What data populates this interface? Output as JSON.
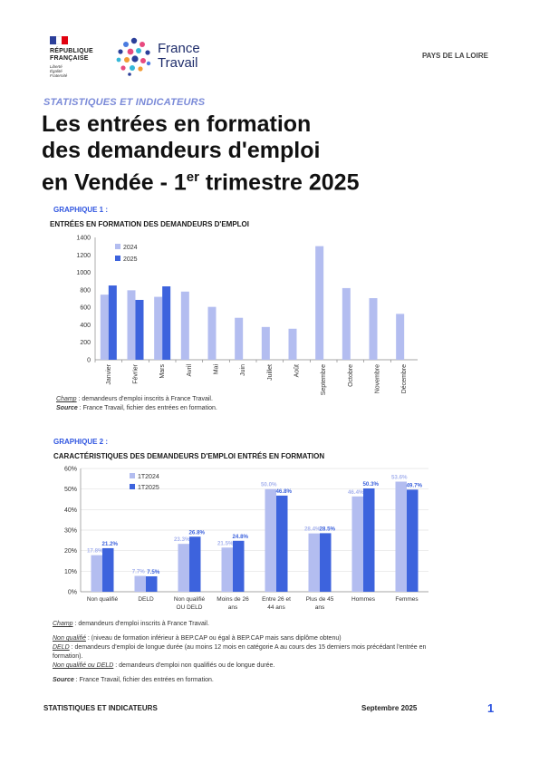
{
  "header": {
    "republic_lines": [
      "RÉPUBLIQUE",
      "FRANÇAISE"
    ],
    "republic_motto": [
      "Liberté",
      "Égalité",
      "Fraternité"
    ],
    "brand_lines": [
      "France",
      "Travail"
    ],
    "region": "PAYS DE LA LOIRE"
  },
  "kicker": "STATISTIQUES ET INDICATEURS",
  "title": {
    "line1": "Les entrées en formation",
    "line2": "des demandeurs d'emploi",
    "line3_before": "en Vendée - 1",
    "line3_sup": "er",
    "line3_after": " trimestre 2025"
  },
  "graph1": {
    "label": "GRAPHIQUE 1 :",
    "title": "ENTRÉES EN FORMATION DES DEMANDEURS D'EMPLOI",
    "note_champ_label": "Champ",
    "note_champ_text": " : demandeurs d'emploi inscrits à France Travail.",
    "note_source_label": "Source",
    "note_source_text": " : France Travail, fichier des entrées en formation."
  },
  "graph2": {
    "label": "GRAPHIQUE 2 :",
    "title": "CARACTÉRISTIQUES DES DEMANDEURS D'EMPLOI ENTRÉS EN FORMATION",
    "note_champ_label": "Champ",
    "note_champ_text": " : demandeurs d'emploi inscrits à France Travail.",
    "def1_label": "Non qualifié",
    "def1_text": " : (niveau de formation inférieur à BEP.CAP ou égal à BEP.CAP mais sans diplôme obtenu)",
    "def2_label": "DELD",
    "def2_text": " : demandeurs d'emploi de longue durée (au moins 12 mois en catégorie A au cours des 15 derniers mois précédant l'entrée en formation).",
    "def3_label": "Non qualifié ou DELD",
    "def3_text": " : demandeurs d'emploi non qualifiés ou de longue durée.",
    "note_source_label": "Source",
    "note_source_text": " : France Travail, fichier des entrées en formation."
  },
  "footer": {
    "left": "STATISTIQUES ET INDICATEURS",
    "date": "Septembre 2025",
    "page": "1"
  },
  "colors": {
    "light": "#b3bdf0",
    "dark": "#3d63dd",
    "accent": "#2f55e0"
  },
  "chart_data": [
    {
      "type": "bar",
      "categories": [
        "Janvier",
        "Février",
        "Mars",
        "Avril",
        "Mai",
        "Juin",
        "Juillet",
        "Août",
        "Septembre",
        "Octobre",
        "Novembre",
        "Décembre"
      ],
      "series": [
        {
          "name": "2024",
          "values": [
            745,
            795,
            720,
            780,
            605,
            480,
            375,
            355,
            1300,
            820,
            705,
            525
          ]
        },
        {
          "name": "2025",
          "values": [
            850,
            685,
            840,
            null,
            null,
            null,
            null,
            null,
            null,
            null,
            null,
            null
          ]
        }
      ],
      "ylim": [
        0,
        1400
      ],
      "yticks": [
        "0",
        "200",
        "400",
        "600",
        "800",
        "1000",
        "1200",
        "1400"
      ],
      "legend": "top-left"
    },
    {
      "type": "bar",
      "categories": [
        "Non qualifié",
        "DELD",
        "Non qualifié ou DELD",
        "Moins de 26 ans",
        "Entre 26 et 44 ans",
        "Plus de 45 ans",
        "Hommes",
        "Femmes"
      ],
      "category_lines": [
        [
          "Non qualifié"
        ],
        [
          "DELD"
        ],
        [
          "Non qualifié",
          "OU DELD"
        ],
        [
          "Moins de 26",
          "ans"
        ],
        [
          "Entre 26 et",
          "44 ans"
        ],
        [
          "Plus de 45",
          "ans"
        ],
        [
          "Hommes"
        ],
        [
          "Femmes"
        ]
      ],
      "series": [
        {
          "name": "1T2024",
          "values": [
            17.8,
            7.7,
            23.3,
            21.5,
            50.0,
            28.4,
            46.4,
            53.6
          ],
          "labels": [
            "17.8%",
            "7.7%",
            "23.3%",
            "21.5%",
            "50.0%",
            "28.4%",
            "46.4%",
            "53.6%"
          ]
        },
        {
          "name": "1T2025",
          "values": [
            21.2,
            7.5,
            26.8,
            24.8,
            46.8,
            28.5,
            50.3,
            49.7
          ],
          "labels": [
            "21.2%",
            "7.5%",
            "26.8%",
            "24.8%",
            "46.8%",
            "28.5%",
            "50.3%",
            "49.7%"
          ]
        }
      ],
      "ylim": [
        0,
        60
      ],
      "yticks": [
        "0%",
        "10%",
        "20%",
        "30%",
        "40%",
        "50%",
        "60%"
      ],
      "legend": "top-left"
    }
  ]
}
